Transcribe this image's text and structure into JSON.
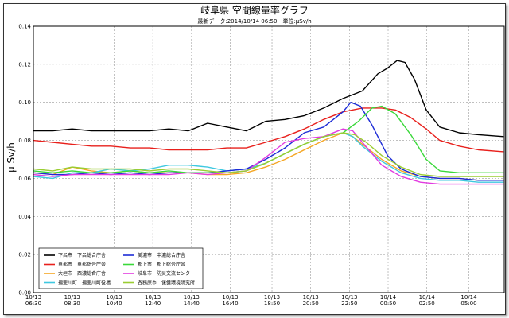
{
  "chart_data": {
    "type": "line",
    "title": "岐阜県 空間線量率グラフ",
    "subtitle": "最新データ:2014/10/14 06:50　単位:μSv/h",
    "ylabel": "μ Sv/h",
    "xlabel": "",
    "ylim": [
      0,
      0.14
    ],
    "yticks": [
      "0.00",
      "0.02",
      "0.04",
      "0.06",
      "0.08",
      "0.10",
      "0.12",
      "0.14"
    ],
    "xlim": [
      0,
      24.33
    ],
    "x_unit": "hours from 10/13 06:30",
    "xticks": [
      {
        "x": 0,
        "date": "10/13",
        "time": "06:30"
      },
      {
        "x": 2,
        "date": "10/13",
        "time": "08:30"
      },
      {
        "x": 4.17,
        "date": "10/13",
        "time": "10:40"
      },
      {
        "x": 6.17,
        "date": "10/13",
        "time": "12:40"
      },
      {
        "x": 8.17,
        "date": "10/13",
        "time": "14:40"
      },
      {
        "x": 10.17,
        "date": "10/13",
        "time": "16:40"
      },
      {
        "x": 12.33,
        "date": "10/13",
        "time": "18:50"
      },
      {
        "x": 14.33,
        "date": "10/13",
        "time": "20:50"
      },
      {
        "x": 16.33,
        "date": "10/13",
        "time": "22:50"
      },
      {
        "x": 18.33,
        "date": "10/14",
        "time": "00:50"
      },
      {
        "x": 20.33,
        "date": "10/14",
        "time": "02:50"
      },
      {
        "x": 22.5,
        "date": "10/14",
        "time": "05:00"
      }
    ],
    "grid": true,
    "legend_position": "bottom-left",
    "series": [
      {
        "name": "下呂市　下呂総合庁舎",
        "color": "#000000",
        "points": [
          [
            0,
            0.085
          ],
          [
            1,
            0.085
          ],
          [
            2,
            0.086
          ],
          [
            3,
            0.085
          ],
          [
            4,
            0.085
          ],
          [
            5,
            0.085
          ],
          [
            6,
            0.085
          ],
          [
            7,
            0.086
          ],
          [
            8,
            0.085
          ],
          [
            9,
            0.089
          ],
          [
            10,
            0.087
          ],
          [
            11,
            0.085
          ],
          [
            12,
            0.09
          ],
          [
            13,
            0.091
          ],
          [
            14,
            0.093
          ],
          [
            15,
            0.097
          ],
          [
            16,
            0.102
          ],
          [
            17,
            0.106
          ],
          [
            17.8,
            0.115
          ],
          [
            18.3,
            0.118
          ],
          [
            18.8,
            0.122
          ],
          [
            19.2,
            0.121
          ],
          [
            19.7,
            0.112
          ],
          [
            20.3,
            0.096
          ],
          [
            21,
            0.087
          ],
          [
            22,
            0.084
          ],
          [
            23,
            0.083
          ],
          [
            24.3,
            0.082
          ]
        ]
      },
      {
        "name": "恵那市　恵那総合庁舎",
        "color": "#e8201c",
        "points": [
          [
            0,
            0.08
          ],
          [
            1,
            0.079
          ],
          [
            2,
            0.078
          ],
          [
            3,
            0.077
          ],
          [
            4,
            0.077
          ],
          [
            5,
            0.076
          ],
          [
            6,
            0.076
          ],
          [
            7,
            0.075
          ],
          [
            8,
            0.075
          ],
          [
            9,
            0.075
          ],
          [
            10,
            0.076
          ],
          [
            11,
            0.076
          ],
          [
            12,
            0.079
          ],
          [
            13,
            0.082
          ],
          [
            14,
            0.086
          ],
          [
            15,
            0.091
          ],
          [
            16,
            0.095
          ],
          [
            17,
            0.097
          ],
          [
            18,
            0.097
          ],
          [
            18.7,
            0.096
          ],
          [
            19.5,
            0.092
          ],
          [
            20.3,
            0.086
          ],
          [
            21,
            0.08
          ],
          [
            22,
            0.077
          ],
          [
            23,
            0.075
          ],
          [
            24.3,
            0.074
          ]
        ]
      },
      {
        "name": "大垣市　西濃総合庁舎",
        "color": "#f5a623",
        "points": [
          [
            0,
            0.063
          ],
          [
            1,
            0.062
          ],
          [
            2,
            0.066
          ],
          [
            3,
            0.064
          ],
          [
            4,
            0.063
          ],
          [
            5,
            0.064
          ],
          [
            6,
            0.063
          ],
          [
            7,
            0.063
          ],
          [
            8,
            0.063
          ],
          [
            9,
            0.062
          ],
          [
            10,
            0.062
          ],
          [
            11,
            0.063
          ],
          [
            12,
            0.066
          ],
          [
            13,
            0.07
          ],
          [
            14,
            0.075
          ],
          [
            15,
            0.08
          ],
          [
            16,
            0.084
          ],
          [
            16.5,
            0.082
          ],
          [
            17,
            0.078
          ],
          [
            18,
            0.07
          ],
          [
            19,
            0.064
          ],
          [
            20,
            0.061
          ],
          [
            21,
            0.06
          ],
          [
            22,
            0.06
          ],
          [
            23,
            0.059
          ],
          [
            24.3,
            0.059
          ]
        ]
      },
      {
        "name": "揖斐川町　揖斐川町役場",
        "color": "#3ec8e0",
        "points": [
          [
            0,
            0.061
          ],
          [
            1,
            0.06
          ],
          [
            2,
            0.063
          ],
          [
            3,
            0.063
          ],
          [
            4,
            0.065
          ],
          [
            5,
            0.064
          ],
          [
            6,
            0.065
          ],
          [
            7,
            0.067
          ],
          [
            8,
            0.067
          ],
          [
            9,
            0.066
          ],
          [
            10,
            0.064
          ],
          [
            11,
            0.065
          ],
          [
            12,
            0.068
          ],
          [
            13,
            0.073
          ],
          [
            14,
            0.078
          ],
          [
            15,
            0.082
          ],
          [
            16,
            0.084
          ],
          [
            16.5,
            0.082
          ],
          [
            17,
            0.077
          ],
          [
            18,
            0.069
          ],
          [
            19,
            0.063
          ],
          [
            20,
            0.06
          ],
          [
            21,
            0.059
          ],
          [
            22,
            0.059
          ],
          [
            23,
            0.058
          ],
          [
            24.3,
            0.058
          ]
        ]
      },
      {
        "name": "美濃市　中濃総合庁舎",
        "color": "#1c2bd6",
        "points": [
          [
            0,
            0.063
          ],
          [
            1,
            0.062
          ],
          [
            2,
            0.062
          ],
          [
            3,
            0.063
          ],
          [
            4,
            0.062
          ],
          [
            5,
            0.063
          ],
          [
            6,
            0.062
          ],
          [
            7,
            0.063
          ],
          [
            8,
            0.063
          ],
          [
            9,
            0.063
          ],
          [
            10,
            0.064
          ],
          [
            11,
            0.065
          ],
          [
            12,
            0.07
          ],
          [
            13,
            0.076
          ],
          [
            14,
            0.084
          ],
          [
            15,
            0.087
          ],
          [
            16,
            0.095
          ],
          [
            16.4,
            0.1
          ],
          [
            16.9,
            0.098
          ],
          [
            17.5,
            0.088
          ],
          [
            18.3,
            0.072
          ],
          [
            19,
            0.065
          ],
          [
            20,
            0.061
          ],
          [
            21,
            0.06
          ],
          [
            22,
            0.06
          ],
          [
            23,
            0.059
          ],
          [
            24.3,
            0.059
          ]
        ]
      },
      {
        "name": "郡上市　郡上総合庁舎",
        "color": "#3ad83a",
        "points": [
          [
            0,
            0.064
          ],
          [
            1,
            0.063
          ],
          [
            2,
            0.064
          ],
          [
            3,
            0.063
          ],
          [
            4,
            0.063
          ],
          [
            5,
            0.064
          ],
          [
            6,
            0.063
          ],
          [
            7,
            0.064
          ],
          [
            8,
            0.063
          ],
          [
            9,
            0.063
          ],
          [
            10,
            0.063
          ],
          [
            11,
            0.064
          ],
          [
            12,
            0.068
          ],
          [
            13,
            0.073
          ],
          [
            14,
            0.078
          ],
          [
            15,
            0.082
          ],
          [
            16,
            0.084
          ],
          [
            16.8,
            0.09
          ],
          [
            17.5,
            0.097
          ],
          [
            18,
            0.098
          ],
          [
            18.7,
            0.094
          ],
          [
            19.5,
            0.083
          ],
          [
            20.3,
            0.07
          ],
          [
            21,
            0.064
          ],
          [
            22,
            0.063
          ],
          [
            23,
            0.063
          ],
          [
            24.3,
            0.063
          ]
        ]
      },
      {
        "name": "岐阜市　防災交流センター",
        "color": "#e23be0",
        "points": [
          [
            0,
            0.062
          ],
          [
            1,
            0.061
          ],
          [
            2,
            0.062
          ],
          [
            3,
            0.062
          ],
          [
            4,
            0.062
          ],
          [
            5,
            0.062
          ],
          [
            6,
            0.062
          ],
          [
            7,
            0.062
          ],
          [
            8,
            0.063
          ],
          [
            9,
            0.062
          ],
          [
            10,
            0.063
          ],
          [
            11,
            0.064
          ],
          [
            12,
            0.071
          ],
          [
            13,
            0.079
          ],
          [
            14,
            0.081
          ],
          [
            15,
            0.082
          ],
          [
            16,
            0.086
          ],
          [
            16.5,
            0.085
          ],
          [
            17,
            0.079
          ],
          [
            18,
            0.067
          ],
          [
            19,
            0.061
          ],
          [
            20,
            0.058
          ],
          [
            21,
            0.057
          ],
          [
            22,
            0.057
          ],
          [
            23,
            0.057
          ],
          [
            24.3,
            0.057
          ]
        ]
      },
      {
        "name": "各務原市　保健環境研究所",
        "color": "#9acd32",
        "points": [
          [
            0,
            0.065
          ],
          [
            1,
            0.064
          ],
          [
            2,
            0.066
          ],
          [
            3,
            0.065
          ],
          [
            4,
            0.065
          ],
          [
            5,
            0.065
          ],
          [
            6,
            0.064
          ],
          [
            7,
            0.065
          ],
          [
            8,
            0.065
          ],
          [
            9,
            0.064
          ],
          [
            10,
            0.063
          ],
          [
            11,
            0.064
          ],
          [
            12,
            0.068
          ],
          [
            13,
            0.073
          ],
          [
            14,
            0.078
          ],
          [
            15,
            0.082
          ],
          [
            16,
            0.084
          ],
          [
            16.6,
            0.083
          ],
          [
            17.2,
            0.079
          ],
          [
            18,
            0.072
          ],
          [
            19,
            0.066
          ],
          [
            20,
            0.062
          ],
          [
            21,
            0.061
          ],
          [
            22,
            0.061
          ],
          [
            23,
            0.061
          ],
          [
            24.3,
            0.061
          ]
        ]
      }
    ]
  }
}
